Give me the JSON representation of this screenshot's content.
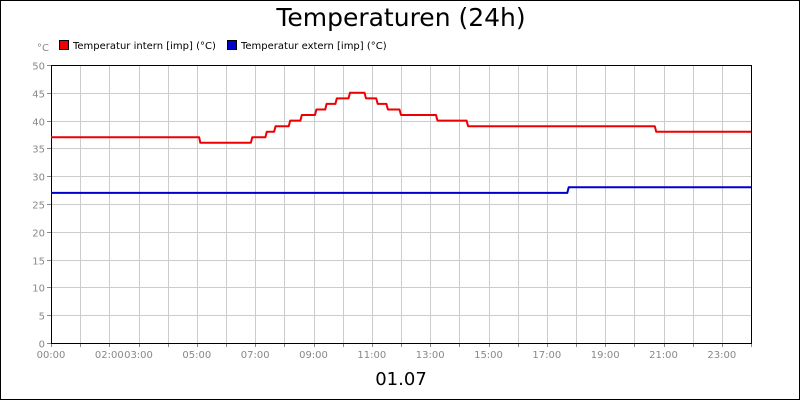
{
  "chart_data": {
    "type": "line",
    "title": "Temperaturen (24h)",
    "unit_label": "°C",
    "xlabel": "01.07",
    "ylim": [
      0,
      50
    ],
    "y_ticks": [
      0,
      5,
      10,
      15,
      20,
      25,
      30,
      35,
      40,
      45,
      50
    ],
    "xlim": [
      0,
      24
    ],
    "x_ticks": [
      {
        "x": 0,
        "label": "00:00"
      },
      {
        "x": 2,
        "label": "02:00"
      },
      {
        "x": 3,
        "label": "03:00"
      },
      {
        "x": 5,
        "label": "05:00"
      },
      {
        "x": 7,
        "label": "07:00"
      },
      {
        "x": 9,
        "label": "09:00"
      },
      {
        "x": 11,
        "label": "11:00"
      },
      {
        "x": 13,
        "label": "13:00"
      },
      {
        "x": 15,
        "label": "15:00"
      },
      {
        "x": 17,
        "label": "17:00"
      },
      {
        "x": 19,
        "label": "19:00"
      },
      {
        "x": 21,
        "label": "21:00"
      },
      {
        "x": 23,
        "label": "23:00"
      }
    ],
    "grid": true,
    "legend_position": "top-left",
    "series": [
      {
        "name": "Temperatur intern [imp] (°C)",
        "color": "#ee0000",
        "points": [
          [
            0.0,
            37
          ],
          [
            5.08,
            37
          ],
          [
            5.12,
            36
          ],
          [
            6.85,
            36
          ],
          [
            6.9,
            37
          ],
          [
            7.35,
            37
          ],
          [
            7.4,
            38
          ],
          [
            7.65,
            38
          ],
          [
            7.7,
            39
          ],
          [
            8.15,
            39
          ],
          [
            8.2,
            40
          ],
          [
            8.55,
            40
          ],
          [
            8.6,
            41
          ],
          [
            9.05,
            41
          ],
          [
            9.1,
            42
          ],
          [
            9.4,
            42
          ],
          [
            9.45,
            43
          ],
          [
            9.75,
            43
          ],
          [
            9.8,
            44
          ],
          [
            10.2,
            44
          ],
          [
            10.25,
            45
          ],
          [
            10.75,
            45
          ],
          [
            10.8,
            44
          ],
          [
            11.15,
            44
          ],
          [
            11.2,
            43
          ],
          [
            11.5,
            43
          ],
          [
            11.55,
            42
          ],
          [
            11.95,
            42
          ],
          [
            12.0,
            41
          ],
          [
            13.2,
            41
          ],
          [
            13.25,
            40
          ],
          [
            14.25,
            40
          ],
          [
            14.3,
            39
          ],
          [
            20.7,
            39
          ],
          [
            20.75,
            38
          ],
          [
            24.0,
            38
          ]
        ]
      },
      {
        "name": "Temperatur extern [imp] (°C)",
        "color": "#0000cc",
        "points": [
          [
            0.0,
            27
          ],
          [
            17.7,
            27
          ],
          [
            17.75,
            28
          ],
          [
            24.0,
            28
          ]
        ]
      }
    ]
  }
}
